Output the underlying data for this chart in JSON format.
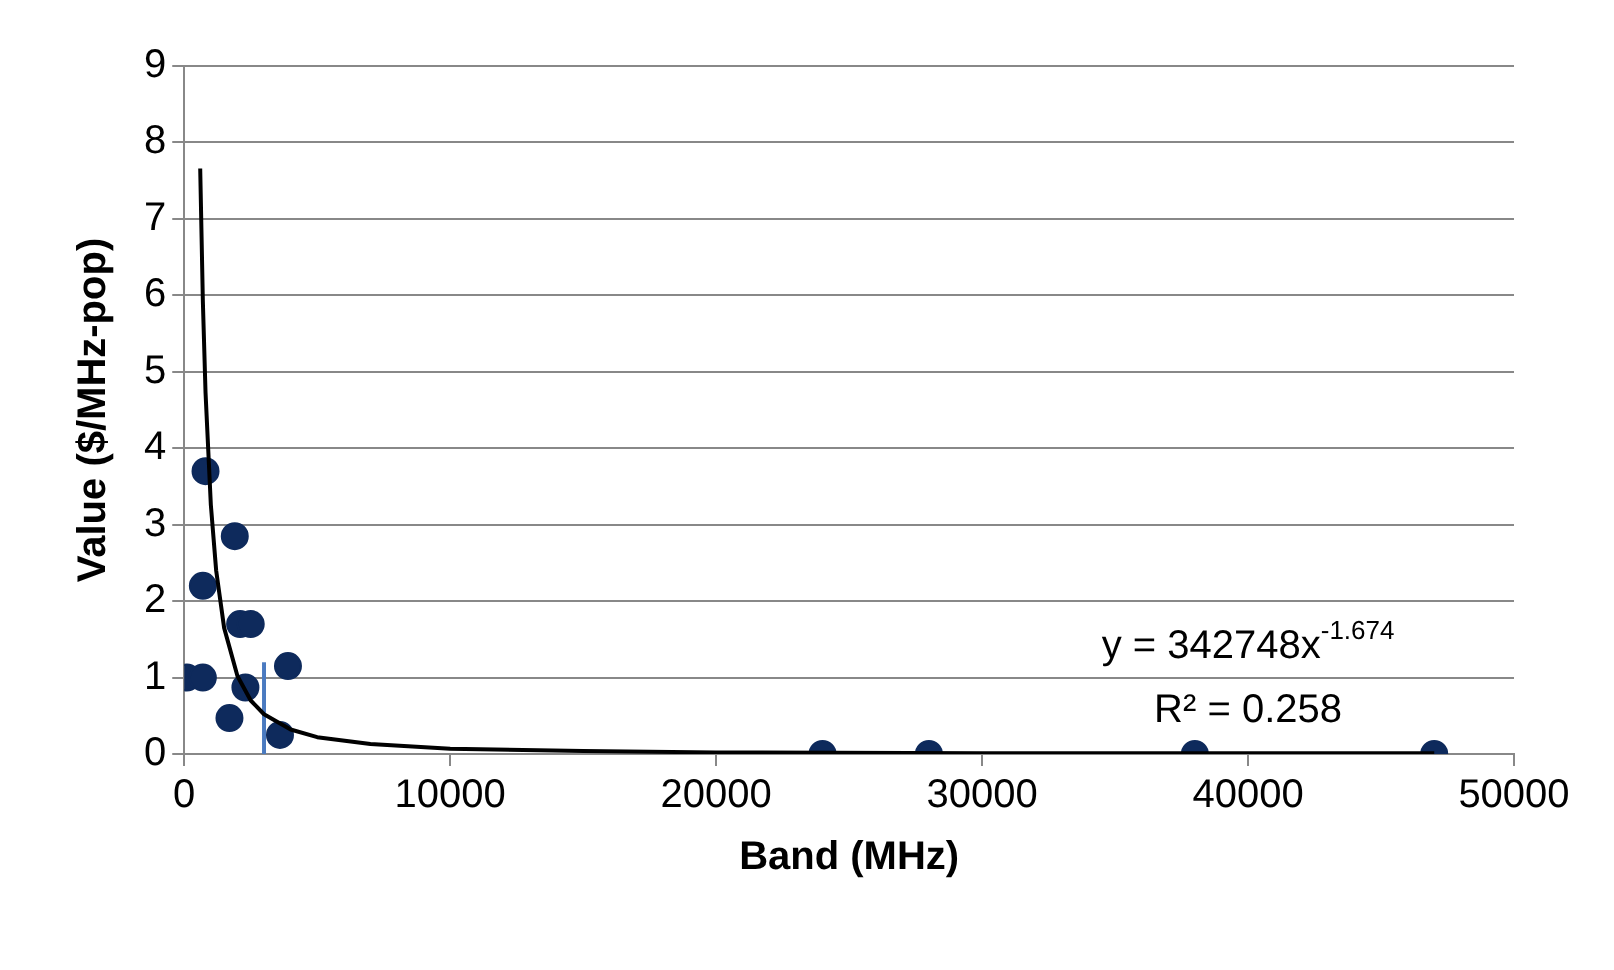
{
  "chart_data": {
    "type": "scatter",
    "xlabel": "Band (MHz)",
    "ylabel": "Value ($/MHz-pop)",
    "xlim": [
      0,
      50000
    ],
    "xticks": [
      0,
      10000,
      20000,
      30000,
      40000,
      50000
    ],
    "ylim": [
      0,
      9
    ],
    "yticks": [
      0,
      1,
      2,
      3,
      4,
      5,
      6,
      7,
      8,
      9
    ],
    "grid": "y",
    "legend": false,
    "marker": "circle",
    "annotations": [
      "y = 342748x$^{-1.674}$",
      "R² = 0.258"
    ],
    "series": [
      {
        "color": "#0e2a5c",
        "x": [
          100,
          700,
          700,
          800,
          1900,
          2100,
          2500,
          1700,
          2300,
          3900,
          3600,
          24000,
          28000,
          38000,
          47000
        ],
        "values": [
          1.0,
          1.0,
          2.2,
          3.7,
          2.85,
          1.7,
          1.7,
          0.47,
          0.87,
          1.15,
          0.25,
          0,
          0,
          0,
          0
        ]
      },
      {
        "type": "line",
        "color": "#000000",
        "marker": "none",
        "x": [
          600,
          700,
          800,
          1000,
          1200,
          1500,
          2000,
          2500,
          3000,
          4000,
          5000,
          7000,
          10000,
          15000,
          20000,
          30000,
          47000
        ],
        "values": [
          7.66,
          5.92,
          4.73,
          3.26,
          2.4,
          1.65,
          1.02,
          0.7,
          0.52,
          0.32,
          0.22,
          0.13,
          0.07,
          0.04,
          0.02,
          0.01,
          0.01
        ]
      },
      {
        "type": "line",
        "color": "#4a7ac0",
        "marker": "none",
        "x": [
          3000,
          3000
        ],
        "values": [
          0,
          1.2
        ]
      }
    ]
  }
}
